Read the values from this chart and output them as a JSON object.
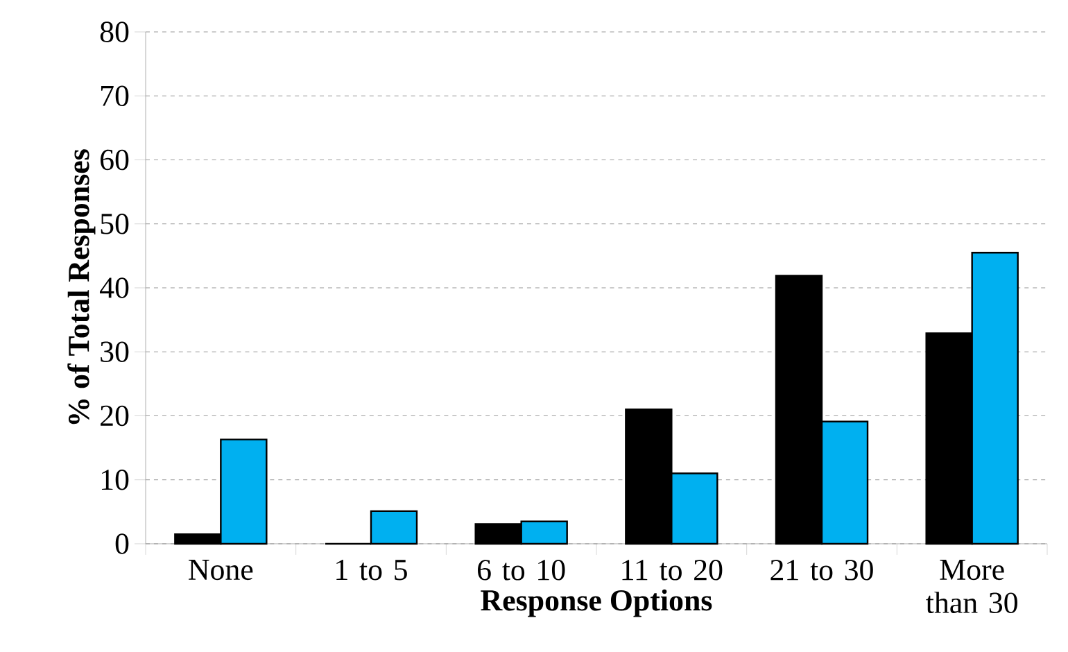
{
  "chart_data": {
    "type": "bar",
    "xlabel": "Response Options",
    "ylabel": "% of Total Responses",
    "categories": [
      "None",
      "1 to 5",
      "6 to 10",
      "11 to 20",
      "21 to 30",
      "More than 30"
    ],
    "series": [
      {
        "color": "#000000",
        "values": [
          1.5,
          0,
          3.1,
          21.0,
          41.9,
          32.9
        ]
      },
      {
        "color": "#00b0f0",
        "values": [
          16.3,
          5.1,
          3.5,
          11.0,
          19.1,
          45.5
        ]
      }
    ],
    "ylim": [
      0,
      80
    ],
    "yticks": [
      0,
      10,
      20,
      30,
      40,
      50,
      60,
      70,
      80
    ],
    "grid": "y"
  }
}
